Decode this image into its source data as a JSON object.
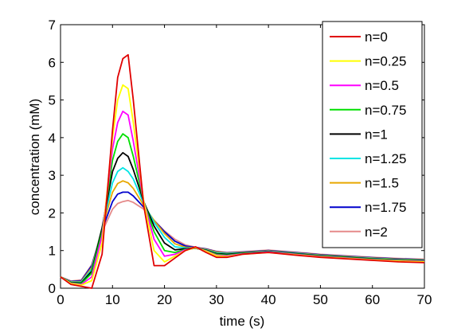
{
  "chart_data": {
    "type": "line",
    "title": "",
    "xlabel": "time (s)",
    "ylabel": "concentration (mM)",
    "xlim": [
      0,
      70
    ],
    "ylim": [
      0,
      7
    ],
    "xticks": [
      "0",
      "10",
      "20",
      "30",
      "40",
      "50",
      "60",
      "70"
    ],
    "yticks": [
      "0",
      "1",
      "2",
      "3",
      "4",
      "5",
      "6",
      "7"
    ],
    "grid": false,
    "legend_position": "top-right",
    "x": [
      0,
      2,
      4,
      6,
      8,
      10,
      11,
      12,
      13,
      14,
      16,
      18,
      20,
      22,
      24,
      26,
      28,
      30,
      32,
      35,
      40,
      45,
      50,
      55,
      60,
      65,
      70
    ],
    "series": [
      {
        "name": "n=0",
        "color": "#e00000",
        "values": [
          0.3,
          0.1,
          0.05,
          0.0,
          0.9,
          4.2,
          5.6,
          6.1,
          6.2,
          5.0,
          2.2,
          0.6,
          0.6,
          0.8,
          1.0,
          1.1,
          0.95,
          0.82,
          0.82,
          0.9,
          0.95,
          0.88,
          0.82,
          0.78,
          0.74,
          0.7,
          0.68
        ]
      },
      {
        "name": "n=0.25",
        "color": "#ffff00",
        "values": [
          0.3,
          0.12,
          0.08,
          0.2,
          1.2,
          4.0,
          5.0,
          5.4,
          5.3,
          4.4,
          2.3,
          1.0,
          0.7,
          0.85,
          1.0,
          1.08,
          0.98,
          0.86,
          0.84,
          0.9,
          0.95,
          0.89,
          0.83,
          0.79,
          0.75,
          0.72,
          0.7
        ]
      },
      {
        "name": "n=0.5",
        "color": "#ff00ff",
        "values": [
          0.3,
          0.13,
          0.1,
          0.3,
          1.4,
          3.7,
          4.4,
          4.7,
          4.6,
          3.9,
          2.3,
          1.3,
          0.85,
          0.9,
          1.02,
          1.07,
          0.99,
          0.88,
          0.86,
          0.91,
          0.96,
          0.9,
          0.84,
          0.8,
          0.76,
          0.73,
          0.71
        ]
      },
      {
        "name": "n=0.75",
        "color": "#00e000",
        "values": [
          0.3,
          0.14,
          0.12,
          0.4,
          1.5,
          3.4,
          3.9,
          4.1,
          4.0,
          3.5,
          2.3,
          1.5,
          1.0,
          0.95,
          1.03,
          1.06,
          1.0,
          0.9,
          0.88,
          0.92,
          0.96,
          0.91,
          0.85,
          0.81,
          0.77,
          0.74,
          0.72
        ]
      },
      {
        "name": "n=1",
        "color": "#000000",
        "values": [
          0.3,
          0.15,
          0.14,
          0.45,
          1.6,
          3.1,
          3.45,
          3.6,
          3.5,
          3.15,
          2.3,
          1.65,
          1.2,
          1.02,
          1.05,
          1.06,
          1.01,
          0.92,
          0.9,
          0.93,
          0.97,
          0.92,
          0.86,
          0.82,
          0.78,
          0.75,
          0.73
        ]
      },
      {
        "name": "n=1.25",
        "color": "#00e5e5",
        "values": [
          0.3,
          0.16,
          0.16,
          0.5,
          1.6,
          2.8,
          3.1,
          3.2,
          3.1,
          2.9,
          2.25,
          1.75,
          1.35,
          1.1,
          1.07,
          1.06,
          1.02,
          0.94,
          0.92,
          0.94,
          0.98,
          0.93,
          0.87,
          0.83,
          0.79,
          0.76,
          0.74
        ]
      },
      {
        "name": "n=1.5",
        "color": "#e8a800",
        "values": [
          0.3,
          0.17,
          0.18,
          0.55,
          1.6,
          2.55,
          2.78,
          2.85,
          2.8,
          2.65,
          2.2,
          1.8,
          1.45,
          1.18,
          1.09,
          1.07,
          1.03,
          0.96,
          0.93,
          0.95,
          0.99,
          0.94,
          0.88,
          0.84,
          0.8,
          0.77,
          0.75
        ]
      },
      {
        "name": "n=1.75",
        "color": "#0000cc",
        "values": [
          0.3,
          0.18,
          0.2,
          0.6,
          1.55,
          2.3,
          2.5,
          2.55,
          2.55,
          2.45,
          2.15,
          1.8,
          1.5,
          1.25,
          1.12,
          1.08,
          1.04,
          0.97,
          0.94,
          0.96,
          1.0,
          0.95,
          0.89,
          0.85,
          0.81,
          0.78,
          0.76
        ]
      },
      {
        "name": "n=2",
        "color": "#e58a8a",
        "values": [
          0.3,
          0.19,
          0.22,
          0.62,
          1.5,
          2.1,
          2.25,
          2.3,
          2.33,
          2.28,
          2.1,
          1.8,
          1.52,
          1.3,
          1.15,
          1.09,
          1.05,
          0.98,
          0.95,
          0.97,
          1.01,
          0.96,
          0.9,
          0.86,
          0.82,
          0.79,
          0.77
        ]
      }
    ]
  }
}
